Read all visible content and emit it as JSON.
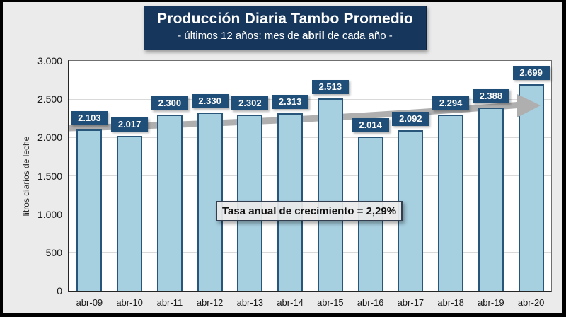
{
  "header": {
    "title": "Producción Diaria Tambo Promedio",
    "subtitle": {
      "prefix": "- últimos 12 años: mes de ",
      "bold": "abril",
      "suffix": " de cada año -"
    }
  },
  "chart_data": {
    "type": "bar",
    "title": "Producción Diaria Tambo Promedio",
    "subtitle": "- últimos 12 años: mes de abril de cada año -",
    "categories": [
      "abr-09",
      "abr-10",
      "abr-11",
      "abr-12",
      "abr-13",
      "abr-14",
      "abr-15",
      "abr-16",
      "abr-17",
      "abr-18",
      "abr-19",
      "abr-20"
    ],
    "values": [
      2103,
      2017,
      2300,
      2330,
      2302,
      2313,
      2513,
      2014,
      2092,
      2294,
      2388,
      2699
    ],
    "value_labels": [
      "2.103",
      "2.017",
      "2.300",
      "2.330",
      "2.302",
      "2.313",
      "2.513",
      "2.014",
      "2.092",
      "2.294",
      "2.388",
      "2.699"
    ],
    "ylabel": "litros diarios de leche",
    "xlabel": "",
    "ylim": [
      0,
      3000
    ],
    "yticks": [
      {
        "value": 0,
        "label": "0"
      },
      {
        "value": 500,
        "label": "500"
      },
      {
        "value": 1000,
        "label": "1.000"
      },
      {
        "value": 1500,
        "label": "1.500"
      },
      {
        "value": 2000,
        "label": "2.000"
      },
      {
        "value": 2500,
        "label": "2.500"
      },
      {
        "value": 3000,
        "label": "3.000"
      }
    ],
    "grid": true,
    "legend": false,
    "annotation": "Tasa anual de crecimiento = 2,29%",
    "trend_arrow": {
      "direction": "up",
      "style": "thick-gray-arrow",
      "from_category": "abr-09",
      "to_category": "abr-20"
    }
  },
  "colors": {
    "background": "#ebebeb",
    "plot_background": "#ffffff",
    "navy_title": "#16365c",
    "navy_label": "#1f4e79",
    "bar_fill": "#a6cfe0",
    "bar_border": "#27567a",
    "trend_gray": "#afafaf",
    "grid": "#d9d9d9",
    "axis": "#262626",
    "annotation_border": "#333f50",
    "text_dark": "#1a1a1a"
  }
}
